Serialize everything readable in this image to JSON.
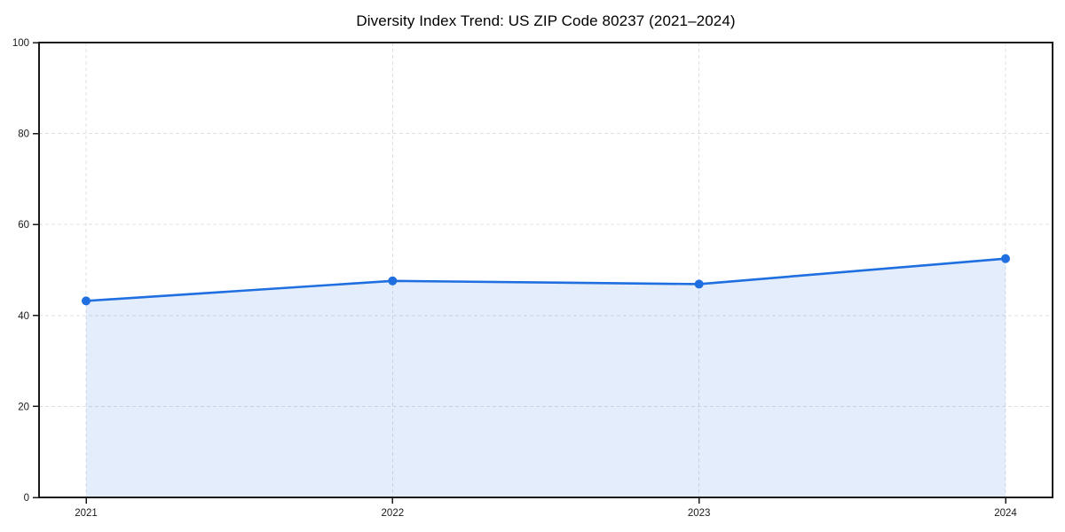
{
  "chart_data": {
    "type": "area",
    "title": "Diversity Index Trend: US ZIP Code 80237 (2021–2024)",
    "x": [
      2021,
      2022,
      2023,
      2024
    ],
    "categories": [
      "2021",
      "2022",
      "2023",
      "2024"
    ],
    "series": [
      {
        "name": "Diversity Index",
        "values": [
          43.2,
          47.6,
          46.9,
          52.5
        ]
      }
    ],
    "xlabel": "",
    "ylabel": "",
    "xlim": [
      2020.85,
      2024.15
    ],
    "ylim": [
      0,
      100
    ],
    "xticks": [
      "2021",
      "2022",
      "2023",
      "2024"
    ],
    "yticks": [
      0,
      20,
      40,
      60,
      80,
      100
    ],
    "grid": true,
    "grid_style": "dashed",
    "legend": false,
    "marker": "circle",
    "colors": {
      "line": "#1f6fe0",
      "marker": "#1f6fe0",
      "fill": "rgba(31, 111, 224, 0.12)",
      "gridline": "#e0e0e0",
      "axis": "#1a1a1a",
      "tick_label": "#1a1a1a",
      "title": "#000000",
      "background": "#ffffff"
    }
  }
}
